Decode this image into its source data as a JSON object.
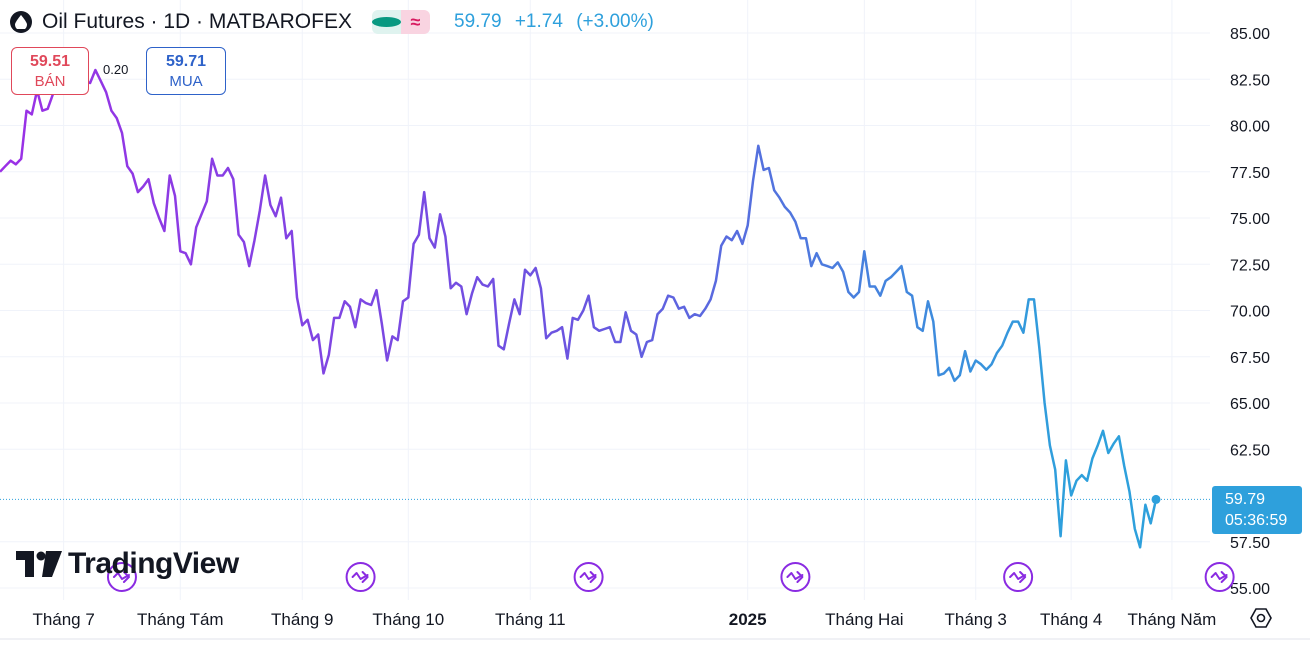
{
  "header": {
    "symbol_title": "Oil Futures · 1D · MATBAROFEX",
    "status_icons": [
      "market-open-dot-icon",
      "delayed-approx-icon"
    ],
    "approx_glyph": "≈",
    "last_price": "59.79",
    "change": "+1.74",
    "change_pct": "(+3.00%)"
  },
  "quotes": {
    "sell_price": "59.51",
    "sell_label": "BÁN",
    "spread": "0.20",
    "buy_price": "59.71",
    "buy_label": "MUA"
  },
  "last_marker": {
    "price": "59.79",
    "countdown": "05:36:59"
  },
  "branding": {
    "logo_text": "TradingView"
  },
  "colors": {
    "line_start": "#9b30e6",
    "line_mid": "#6a55e0",
    "line_end": "#2ea0dc",
    "sell": "#e0485a",
    "buy": "#2e62c9",
    "event_icon": "#8a2be2"
  },
  "chart_data": {
    "type": "line",
    "ylim": [
      55,
      85
    ],
    "y_ticks": [
      "85.00",
      "82.50",
      "80.00",
      "77.50",
      "75.00",
      "72.50",
      "70.00",
      "67.50",
      "65.00",
      "62.50",
      "57.50",
      "55.00"
    ],
    "x_ticks": [
      {
        "label": "Tháng 7",
        "index": 12,
        "bold": false
      },
      {
        "label": "Tháng Tám",
        "index": 34,
        "bold": false
      },
      {
        "label": "Tháng 9",
        "index": 57,
        "bold": false
      },
      {
        "label": "Tháng 10",
        "index": 77,
        "bold": false
      },
      {
        "label": "Tháng 11",
        "index": 100,
        "bold": false
      },
      {
        "label": "2025",
        "index": 141,
        "bold": true
      },
      {
        "label": "Tháng Hai",
        "index": 163,
        "bold": false
      },
      {
        "label": "Tháng 3",
        "index": 184,
        "bold": false
      },
      {
        "label": "Tháng 4",
        "index": 202,
        "bold": false
      },
      {
        "label": "Tháng Năm",
        "index": 221,
        "bold": false
      }
    ],
    "event_markers": [
      23,
      68,
      111,
      150,
      192,
      230
    ],
    "last_value": 59.79,
    "values": [
      77.5,
      77.8,
      78.1,
      77.9,
      78.2,
      80.8,
      80.6,
      81.9,
      80.8,
      80.9,
      81.7,
      82.0,
      82.0,
      82.3,
      81.8,
      82.2,
      82.4,
      82.3,
      83.0,
      82.4,
      81.8,
      80.8,
      80.4,
      79.6,
      77.8,
      77.4,
      76.4,
      76.7,
      77.1,
      75.8,
      75.0,
      74.3,
      77.3,
      76.2,
      73.2,
      73.1,
      72.5,
      74.5,
      75.2,
      75.9,
      78.2,
      77.3,
      77.3,
      77.7,
      77.1,
      74.1,
      73.7,
      72.4,
      73.8,
      75.4,
      77.3,
      75.7,
      75.1,
      76.1,
      73.9,
      74.3,
      70.7,
      69.2,
      69.5,
      68.4,
      68.7,
      66.6,
      67.6,
      69.6,
      69.6,
      70.5,
      70.2,
      69.1,
      70.6,
      70.4,
      70.3,
      71.1,
      69.3,
      67.3,
      68.6,
      68.4,
      70.5,
      70.7,
      73.6,
      74.1,
      76.4,
      73.9,
      73.4,
      75.2,
      74.0,
      71.2,
      71.5,
      71.3,
      69.8,
      70.9,
      71.8,
      71.4,
      71.3,
      71.7,
      68.1,
      67.9,
      69.3,
      70.6,
      69.8,
      72.2,
      71.9,
      72.3,
      71.2,
      68.5,
      68.8,
      68.9,
      69.1,
      67.4,
      69.6,
      69.5,
      70.0,
      70.8,
      69.1,
      68.9,
      69.0,
      69.1,
      68.3,
      68.3,
      69.9,
      68.9,
      68.7,
      67.5,
      68.3,
      68.4,
      69.8,
      70.1,
      70.8,
      70.7,
      70.1,
      70.2,
      69.6,
      69.8,
      69.7,
      70.1,
      70.6,
      71.6,
      73.5,
      74.0,
      73.8,
      74.3,
      73.6,
      74.6,
      77.0,
      78.9,
      77.6,
      77.7,
      76.5,
      76.1,
      75.6,
      75.3,
      74.8,
      73.9,
      73.9,
      72.4,
      73.1,
      72.5,
      72.4,
      72.3,
      72.6,
      72.1,
      71.0,
      70.7,
      71.0,
      73.2,
      71.3,
      71.3,
      70.8,
      71.6,
      71.8,
      72.1,
      72.4,
      71.0,
      70.8,
      69.1,
      68.9,
      70.5,
      69.4,
      66.5,
      66.6,
      66.9,
      66.2,
      66.5,
      67.8,
      66.7,
      67.3,
      67.1,
      66.8,
      67.1,
      67.7,
      68.1,
      68.8,
      69.4,
      69.4,
      68.8,
      70.6,
      70.6,
      68.0,
      65.0,
      62.7,
      61.4,
      57.8,
      61.9,
      60.0,
      60.8,
      61.1,
      60.8,
      62.0,
      62.7,
      63.5,
      62.3,
      62.8,
      63.2,
      61.6,
      60.2,
      58.2,
      57.2,
      59.5,
      58.5,
      59.79
    ]
  }
}
